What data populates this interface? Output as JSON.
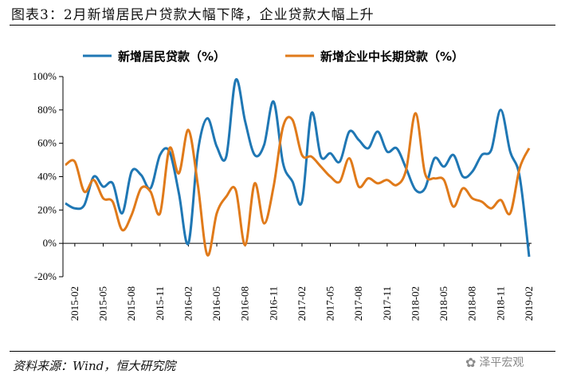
{
  "title": "图表3：2月新增居民户贷款大幅下降，企业贷款大幅上升",
  "source": "资料来源：Wind，恒大研究院",
  "watermark": "泽平宏观",
  "colors": {
    "household": "#1F77B4",
    "corporate": "#E07A1A"
  },
  "chart_data": {
    "type": "line",
    "title": "",
    "xlabel": "",
    "ylabel": "",
    "ylim": [
      -20,
      100
    ],
    "yticks": [
      -20,
      0,
      20,
      40,
      60,
      80,
      100
    ],
    "ytick_labels": [
      "-20%",
      "0%",
      "20%",
      "40%",
      "60%",
      "80%",
      "100%"
    ],
    "grid": false,
    "legend_position": "top",
    "xtick_labels": [
      "2015-02",
      "2015-05",
      "2015-08",
      "2015-11",
      "2016-02",
      "2016-05",
      "2016-08",
      "2016-11",
      "2017-02",
      "2017-05",
      "2017-08",
      "2017-11",
      "2018-02",
      "2018-05",
      "2018-08",
      "2018-11",
      "2019-02"
    ],
    "x": [
      "2015-01",
      "2015-02",
      "2015-03",
      "2015-04",
      "2015-05",
      "2015-06",
      "2015-07",
      "2015-08",
      "2015-09",
      "2015-10",
      "2015-11",
      "2015-12",
      "2016-01",
      "2016-02",
      "2016-03",
      "2016-04",
      "2016-05",
      "2016-06",
      "2016-07",
      "2016-08",
      "2016-09",
      "2016-10",
      "2016-11",
      "2016-12",
      "2017-01",
      "2017-02",
      "2017-03",
      "2017-04",
      "2017-05",
      "2017-06",
      "2017-07",
      "2017-08",
      "2017-09",
      "2017-10",
      "2017-11",
      "2017-12",
      "2018-01",
      "2018-02",
      "2018-03",
      "2018-04",
      "2018-05",
      "2018-06",
      "2018-07",
      "2018-08",
      "2018-09",
      "2018-10",
      "2018-11",
      "2018-12",
      "2019-01",
      "2019-02"
    ],
    "series": [
      {
        "name": "新增居民贷款（%）",
        "color": "#1F77B4",
        "values": [
          24,
          21,
          23,
          40,
          34,
          36,
          18,
          43,
          41,
          33,
          53,
          55,
          30,
          0,
          55,
          75,
          58,
          52,
          98,
          73,
          53,
          59,
          85,
          48,
          37,
          25,
          78,
          52,
          54,
          49,
          67,
          62,
          57,
          67,
          55,
          57,
          45,
          32,
          33,
          51,
          46,
          53,
          40,
          43,
          53,
          56,
          80,
          55,
          40,
          -8
        ]
      },
      {
        "name": "新增企业中长期贷款（%）",
        "color": "#E07A1A",
        "values": [
          47,
          49,
          31,
          38,
          27,
          25,
          8,
          17,
          33,
          31,
          18,
          57,
          42,
          68,
          35,
          -7,
          18,
          28,
          32,
          -1,
          36,
          12,
          34,
          70,
          74,
          53,
          52,
          46,
          40,
          37,
          51,
          34,
          39,
          36,
          38,
          35,
          44,
          78,
          42,
          39,
          38,
          22,
          33,
          27,
          25,
          21,
          26,
          18,
          45,
          57
        ]
      }
    ]
  }
}
